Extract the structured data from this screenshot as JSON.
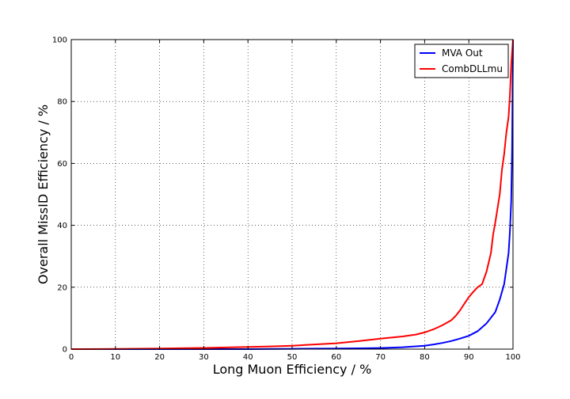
{
  "chart_data": {
    "type": "line",
    "title": "",
    "xlabel": "Long Muon Efficiency / %",
    "ylabel": "Overall MissID Efficiency / %",
    "xlim": [
      0,
      100
    ],
    "ylim": [
      0,
      100
    ],
    "xticks": [
      "0",
      "10",
      "20",
      "30",
      "40",
      "50",
      "60",
      "70",
      "80",
      "90",
      "100"
    ],
    "yticks": [
      "0",
      "20",
      "40",
      "60",
      "80",
      "100"
    ],
    "grid": true,
    "legend_position": "top-right",
    "series": [
      {
        "name": "MVA Out",
        "color": "#0000ff",
        "x": [
          0,
          10,
          20,
          30,
          40,
          50,
          60,
          65,
          70,
          75,
          78,
          80,
          82,
          84,
          86,
          88,
          90,
          92,
          94,
          96,
          97,
          98,
          98.5,
          99,
          99.3,
          99.6,
          99.8,
          100
        ],
        "y": [
          0,
          0,
          0,
          0,
          0,
          0.1,
          0.2,
          0.25,
          0.35,
          0.6,
          0.9,
          1.1,
          1.5,
          2.0,
          2.6,
          3.4,
          4.3,
          5.8,
          8.3,
          12,
          16,
          21,
          26,
          31,
          38,
          48,
          65,
          100
        ]
      },
      {
        "name": "CombDLLmu",
        "color": "#ff0000",
        "x": [
          0,
          10,
          20,
          30,
          40,
          45,
          50,
          55,
          60,
          65,
          70,
          75,
          78,
          80,
          82,
          84,
          86,
          87,
          88,
          89,
          90,
          91,
          92,
          93,
          94,
          95,
          95.5,
          96,
          97,
          97.5,
          98,
          98.5,
          99,
          99.3,
          99.6,
          100
        ],
        "y": [
          0,
          0.05,
          0.2,
          0.4,
          0.7,
          0.85,
          1.1,
          1.5,
          1.9,
          2.6,
          3.4,
          4.1,
          4.7,
          5.4,
          6.4,
          7.7,
          9.3,
          10.7,
          12.5,
          14.7,
          16.8,
          18.5,
          20,
          21,
          25,
          31,
          37,
          41,
          50,
          58,
          63,
          70,
          75,
          82,
          92,
          100
        ]
      }
    ]
  }
}
